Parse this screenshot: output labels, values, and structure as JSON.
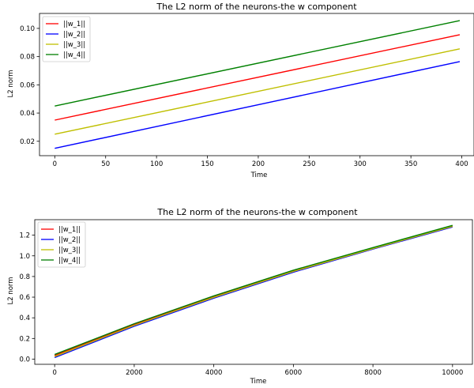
{
  "chart_data": [
    {
      "type": "line",
      "title": "The L2 norm of the neurons-the w component",
      "xlabel": "Time",
      "ylabel": "L2 norm",
      "xlim": [
        -15,
        412
      ],
      "ylim": [
        0.0098,
        0.1106
      ],
      "xticks": [
        0,
        50,
        100,
        150,
        200,
        250,
        300,
        350,
        400
      ],
      "yticks": [
        0.02,
        0.04,
        0.06,
        0.08,
        0.1
      ],
      "ytick_labels": [
        "0.02",
        "0.04",
        "0.06",
        "0.08",
        "0.10"
      ],
      "legend_position": "upper-left",
      "grid": false,
      "series": [
        {
          "name": "||w_1||",
          "color": "#ff0000",
          "x": [
            0,
            398
          ],
          "y": [
            0.035,
            0.0955
          ]
        },
        {
          "name": "||w_2||",
          "color": "#0000ff",
          "x": [
            0,
            398
          ],
          "y": [
            0.015,
            0.0765
          ]
        },
        {
          "name": "||w_3||",
          "color": "#bfbf00",
          "x": [
            0,
            398
          ],
          "y": [
            0.025,
            0.0855
          ]
        },
        {
          "name": "||w_4||",
          "color": "#008000",
          "x": [
            0,
            398
          ],
          "y": [
            0.045,
            0.1055
          ]
        }
      ]
    },
    {
      "type": "line",
      "title": "The L2 norm of the neurons-the w component",
      "xlabel": "Time",
      "ylabel": "L2 norm",
      "xlim": [
        -500,
        10500
      ],
      "ylim": [
        -0.05,
        1.35
      ],
      "xticks": [
        0,
        2000,
        4000,
        6000,
        8000,
        10000
      ],
      "yticks": [
        0.0,
        0.2,
        0.4,
        0.6,
        0.8,
        1.0,
        1.2
      ],
      "ytick_labels": [
        "0.0",
        "0.2",
        "0.4",
        "0.6",
        "0.8",
        "1.0",
        "1.2"
      ],
      "legend_position": "upper-left",
      "grid": false,
      "series": [
        {
          "name": "||w_1||",
          "color": "#ff0000",
          "x": [
            0,
            2000,
            4000,
            6000,
            8000,
            10000
          ],
          "y": [
            0.035,
            0.335,
            0.605,
            0.855,
            1.075,
            1.29
          ]
        },
        {
          "name": "||w_2||",
          "color": "#0000ff",
          "x": [
            0,
            2000,
            4000,
            6000,
            8000,
            10000
          ],
          "y": [
            0.015,
            0.318,
            0.59,
            0.842,
            1.065,
            1.28
          ]
        },
        {
          "name": "||w_3||",
          "color": "#bfbf00",
          "x": [
            0,
            2000,
            4000,
            6000,
            8000,
            10000
          ],
          "y": [
            0.025,
            0.327,
            0.598,
            0.849,
            1.07,
            1.285
          ]
        },
        {
          "name": "||w_4||",
          "color": "#008000",
          "x": [
            0,
            2000,
            4000,
            6000,
            8000,
            10000
          ],
          "y": [
            0.045,
            0.343,
            0.612,
            0.861,
            1.08,
            1.295
          ]
        }
      ]
    }
  ]
}
